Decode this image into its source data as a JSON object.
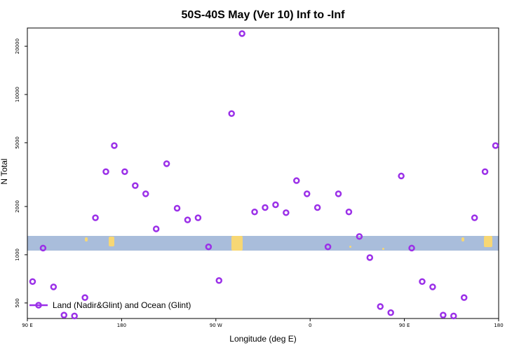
{
  "chart_data": {
    "type": "scatter",
    "title": "50S-40S May (Ver 10)   Inf to -Inf",
    "xlabel": "Longitude (deg E)",
    "ylabel": "N Total",
    "x_ticks": [
      {
        "value": 90,
        "label": "90 E"
      },
      {
        "value": 180,
        "label": "180"
      },
      {
        "value": 270,
        "label": "90 W"
      },
      {
        "value": 360,
        "label": "0"
      },
      {
        "value": 450,
        "label": "90 E"
      },
      {
        "value": 540,
        "label": "180"
      }
    ],
    "y_ticks": [
      500,
      1000,
      2000,
      5000,
      10000,
      20000
    ],
    "y_scale": "log",
    "xlim": [
      90,
      540
    ],
    "ylim": [
      400,
      26000
    ],
    "grid": false,
    "legend_position": "bottom-left",
    "band_color": "#a9bddb",
    "land_color": "#f7d774",
    "series": [
      {
        "name": "Land (Nadir&Glint) and Ocean (Glint)",
        "color": "#9b30e8",
        "x": [
          95,
          105,
          115,
          125,
          135,
          145,
          155,
          165,
          173,
          183,
          193,
          203,
          213,
          223,
          233,
          243,
          253,
          263,
          273,
          285,
          295,
          307,
          317,
          327,
          337,
          347,
          357,
          367,
          377,
          387,
          397,
          407,
          417,
          427,
          437,
          447,
          457,
          467,
          477,
          487,
          497,
          507,
          517,
          527,
          537
        ],
        "y": [
          680,
          1100,
          630,
          420,
          415,
          540,
          1700,
          3300,
          4800,
          3300,
          2700,
          2400,
          1450,
          3700,
          1950,
          1650,
          1700,
          1120,
          690,
          7600,
          24000,
          1850,
          1970,
          2050,
          1830,
          2900,
          2400,
          1970,
          1120,
          2400,
          1850,
          1300,
          960,
          475,
          435,
          3100,
          1100,
          680,
          630,
          420,
          415,
          540,
          1700,
          3300,
          4800
        ]
      }
    ]
  }
}
